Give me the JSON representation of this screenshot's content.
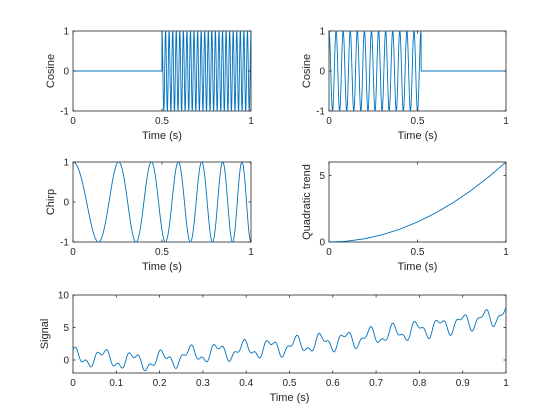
{
  "chart_data": [
    {
      "type": "line",
      "id": "cosine-burst-late",
      "xlabel": "Time (s)",
      "ylabel": "Cosine",
      "xlim": [
        0,
        1
      ],
      "ylim": [
        -1,
        1
      ],
      "xticks": [
        0,
        0.5,
        1
      ],
      "xtick_labels": [
        "0",
        "0.5",
        "1"
      ],
      "yticks": [
        -1,
        0,
        1
      ],
      "ytick_labels": [
        "-1",
        "0",
        "1"
      ],
      "grid": false,
      "series": [
        {
          "color": "#0072BD",
          "description_values": {
            "onset": 0.5,
            "offset": 1.0,
            "frequency_hz": 50,
            "amplitude": 1
          }
        }
      ]
    },
    {
      "type": "line",
      "id": "cosine-burst-early",
      "xlabel": "Time (s)",
      "ylabel": "Cosine",
      "xlim": [
        0,
        1
      ],
      "ylim": [
        -1,
        1
      ],
      "xticks": [
        0,
        0.5,
        1
      ],
      "xtick_labels": [
        "0",
        "0.5",
        "1"
      ],
      "yticks": [
        -1,
        0,
        1
      ],
      "ytick_labels": [
        "-1",
        "0",
        "1"
      ],
      "grid": false,
      "series": [
        {
          "color": "#0072BD",
          "description_values": {
            "onset": 0.0,
            "offset": 0.52,
            "frequency_hz": 25,
            "amplitude": 1
          }
        }
      ]
    },
    {
      "type": "line",
      "id": "chirp",
      "xlabel": "Time (s)",
      "ylabel": "Chirp",
      "xlim": [
        0,
        1
      ],
      "ylim": [
        -1,
        1
      ],
      "xticks": [
        0,
        0.5,
        1
      ],
      "xtick_labels": [
        "0",
        "0.5",
        "1"
      ],
      "yticks": [
        -1,
        0,
        1
      ],
      "ytick_labels": [
        "-1",
        "0",
        "1"
      ],
      "grid": false,
      "series": [
        {
          "color": "#0072BD",
          "description_values": {
            "f0_hz": 3,
            "f1_hz": 10,
            "phase": "cosine"
          }
        }
      ]
    },
    {
      "type": "line",
      "id": "quadratic-trend",
      "xlabel": "Time (s)",
      "ylabel": "Quadratic trend",
      "xlim": [
        0,
        1
      ],
      "ylim": [
        0,
        6
      ],
      "xticks": [
        0,
        0.5,
        1
      ],
      "xtick_labels": [
        "0",
        "0.5",
        "1"
      ],
      "yticks": [
        0,
        5
      ],
      "ytick_labels": [
        "0",
        "5"
      ],
      "grid": false,
      "series": [
        {
          "color": "#0072BD",
          "x": [
            0,
            0.1,
            0.2,
            0.3,
            0.4,
            0.5,
            0.6,
            0.7,
            0.8,
            0.9,
            1.0
          ],
          "values": [
            0,
            0.06,
            0.24,
            0.54,
            0.96,
            1.5,
            2.16,
            2.94,
            3.84,
            4.86,
            6.0
          ]
        }
      ]
    },
    {
      "type": "line",
      "id": "signal",
      "xlabel": "Time (s)",
      "ylabel": "Signal",
      "xlim": [
        0,
        1
      ],
      "ylim": [
        -2,
        10
      ],
      "xticks": [
        0,
        0.1,
        0.2,
        0.3,
        0.4,
        0.5,
        0.6,
        0.7,
        0.8,
        0.9,
        1
      ],
      "xtick_labels": [
        "0",
        "0.1",
        "0.2",
        "0.3",
        "0.4",
        "0.5",
        "0.6",
        "0.7",
        "0.8",
        "0.9",
        "1"
      ],
      "yticks": [
        0,
        5,
        10
      ],
      "ytick_labels": [
        "0",
        "5",
        "10"
      ],
      "grid": false,
      "series": [
        {
          "color": "#0072BD",
          "description_values": {
            "components": "sum of chirp, quadratic trend and cosine bursts",
            "trend_start": 0.5,
            "trend_end": 7.0
          }
        }
      ]
    }
  ]
}
